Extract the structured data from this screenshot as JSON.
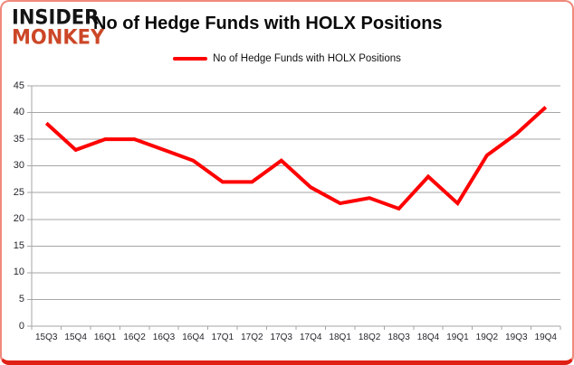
{
  "header": {
    "logo": {
      "line1": "INSIDER",
      "line2": "MONKEY"
    },
    "title": "No of Hedge Funds with HOLX Positions"
  },
  "legend": {
    "label": "No of Hedge Funds with HOLX Positions"
  },
  "chart_data": {
    "type": "line",
    "title": "No of Hedge Funds with HOLX Positions",
    "categories": [
      "15Q3",
      "15Q4",
      "16Q1",
      "16Q2",
      "16Q3",
      "16Q4",
      "17Q1",
      "17Q2",
      "17Q3",
      "17Q4",
      "18Q1",
      "18Q2",
      "18Q3",
      "18Q4",
      "19Q1",
      "19Q2",
      "19Q3",
      "19Q4"
    ],
    "series": [
      {
        "name": "No of Hedge Funds with HOLX Positions",
        "color": "#ff0000",
        "values": [
          38,
          33,
          35,
          35,
          33,
          31,
          27,
          27,
          31,
          26,
          23,
          24,
          22,
          28,
          23,
          32,
          36,
          41
        ]
      }
    ],
    "xlabel": "",
    "ylabel": "",
    "ylim": [
      0,
      45
    ],
    "ytick_step": 5,
    "grid": "horizontal",
    "legend_position": "top"
  },
  "colors": {
    "series_line": "#ff0000",
    "logo_primary": "#141414",
    "logo_accent": "#cc4727",
    "frame_border": "#f0897b",
    "frame_border_bottom": "#e02015",
    "gridline": "#a6a6a6",
    "axis_label": "#26262e",
    "background": "#ffffff"
  }
}
